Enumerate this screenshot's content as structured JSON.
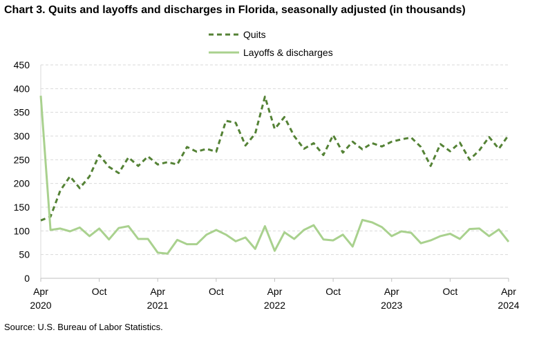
{
  "title": "Chart 3. Quits and layoffs and discharges in Florida, seasonally adjusted (in thousands)",
  "source": "Source: U.S. Bureau of Labor Statistics.",
  "colors": {
    "quits": "#548235",
    "layoffs": "#a9d18e",
    "grid": "#d9d9d9",
    "axis": "#000000"
  },
  "chart_data": {
    "type": "line",
    "title": "Chart 3. Quits and layoffs and discharges in Florida, seasonally adjusted (in thousands)",
    "xlabel": "",
    "ylabel": "",
    "ylim": [
      0,
      450
    ],
    "yticks": [
      0,
      50,
      100,
      150,
      200,
      250,
      300,
      350,
      400,
      450
    ],
    "grid": true,
    "legend": "top-center",
    "x_start": "2020-04",
    "x_end": "2024-04",
    "xticks": [
      {
        "month": "Apr",
        "year": "2020",
        "date": "2020-04"
      },
      {
        "month": "Oct",
        "year": "",
        "date": "2020-10"
      },
      {
        "month": "Apr",
        "year": "2021",
        "date": "2021-04"
      },
      {
        "month": "Oct",
        "year": "",
        "date": "2021-10"
      },
      {
        "month": "Apr",
        "year": "2022",
        "date": "2022-04"
      },
      {
        "month": "Oct",
        "year": "",
        "date": "2022-10"
      },
      {
        "month": "Apr",
        "year": "2023",
        "date": "2023-04"
      },
      {
        "month": "Oct",
        "year": "",
        "date": "2023-10"
      },
      {
        "month": "Apr",
        "year": "2024",
        "date": "2024-04"
      }
    ],
    "series": [
      {
        "name": "Quits",
        "style": "dashed",
        "values": [
          122,
          130,
          185,
          215,
          190,
          215,
          260,
          235,
          222,
          255,
          237,
          257,
          240,
          245,
          240,
          277,
          267,
          273,
          267,
          332,
          328,
          280,
          305,
          383,
          315,
          340,
          300,
          273,
          285,
          260,
          302,
          265,
          288,
          272,
          285,
          278,
          288,
          293,
          297,
          277,
          237,
          283,
          268,
          286,
          250,
          270,
          298,
          273,
          302
        ]
      },
      {
        "name": "Layoffs & discharges",
        "style": "solid",
        "values": [
          385,
          102,
          105,
          99,
          107,
          89,
          105,
          82,
          106,
          110,
          83,
          83,
          54,
          52,
          81,
          72,
          72,
          92,
          102,
          92,
          78,
          86,
          62,
          110,
          58,
          97,
          83,
          102,
          112,
          82,
          80,
          92,
          67,
          123,
          118,
          108,
          89,
          99,
          96,
          74,
          80,
          89,
          94,
          83,
          104,
          105,
          89,
          103,
          77
        ]
      }
    ]
  }
}
